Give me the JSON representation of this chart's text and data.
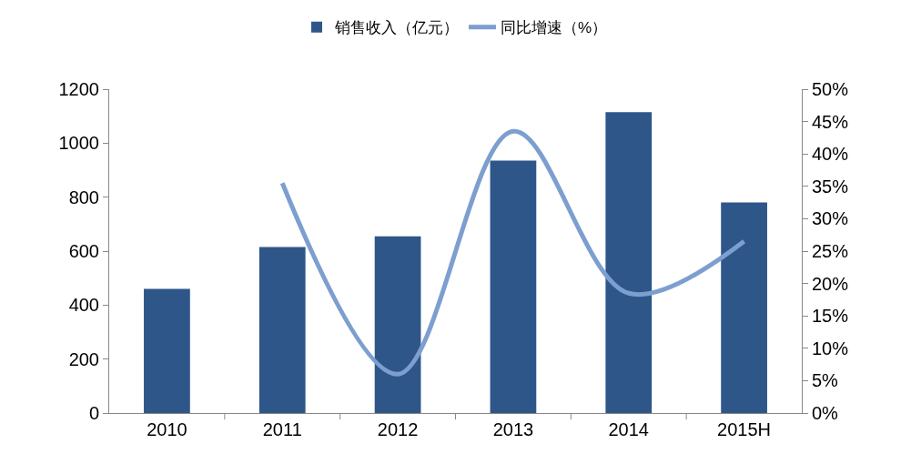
{
  "chart_data": {
    "type": "bar",
    "categories": [
      "2010",
      "2011",
      "2012",
      "2013",
      "2014",
      "2015H"
    ],
    "series": [
      {
        "name": "销售收入（亿元）",
        "color": "#2e5689",
        "values": [
          460,
          615,
          655,
          935,
          1115,
          780
        ]
      },
      {
        "name": "同比增速（%）",
        "color": "#7d9fcf",
        "type": "line",
        "axis": "y2",
        "values": [
          null,
          35.5,
          6,
          43.5,
          18.5,
          26.5
        ]
      }
    ],
    "ylim": [
      0,
      1200
    ],
    "yticks": [
      0,
      200,
      400,
      600,
      800,
      1000,
      1200
    ],
    "y2lim": [
      0,
      50
    ],
    "y2ticks": [
      {
        "value": 0,
        "label": "0%"
      },
      {
        "value": 5,
        "label": "5%"
      },
      {
        "value": 10,
        "label": "10%"
      },
      {
        "value": 15,
        "label": "15%"
      },
      {
        "value": 20,
        "label": "20%"
      },
      {
        "value": 25,
        "label": "25%"
      },
      {
        "value": 30,
        "label": "30%"
      },
      {
        "value": 35,
        "label": "35%"
      },
      {
        "value": 40,
        "label": "40%"
      },
      {
        "value": 45,
        "label": "45%"
      },
      {
        "value": 50,
        "label": "50%"
      }
    ],
    "grid": false,
    "legend": "top",
    "marker": "none",
    "line_style": "solid"
  }
}
